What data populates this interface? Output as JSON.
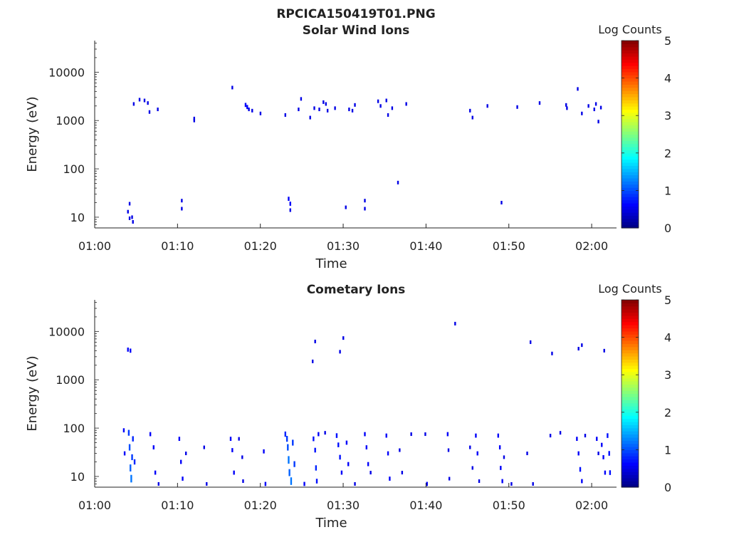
{
  "figure_title": "RPCICA150419T01.PNG",
  "colors": {
    "axis": "#222222",
    "background": "#ffffff",
    "marks": "#00008f"
  },
  "colorbar": {
    "label": "Log Counts",
    "ticks": [
      "5",
      "4",
      "3",
      "2",
      "1",
      "0"
    ],
    "colormap": "jet",
    "range": [
      0,
      5
    ]
  },
  "chart_data": [
    {
      "type": "heatmap",
      "title": "Solar Wind Ions",
      "xlabel": "Time",
      "ylabel": "Energy (eV)",
      "x_ticks": [
        "01:00",
        "01:10",
        "01:20",
        "01:30",
        "01:40",
        "01:50",
        "02:00"
      ],
      "y_ticks": [
        "10",
        "100",
        "1000",
        "10000"
      ],
      "y_scale": "log",
      "xlim_minutes": [
        0,
        63
      ],
      "ylim": [
        6,
        45000
      ],
      "points": [
        [
          4.2,
          19,
          0.5
        ],
        [
          4.0,
          13,
          0.5
        ],
        [
          4.2,
          9.5,
          0.5
        ],
        [
          4.5,
          10,
          0.5
        ],
        [
          4.6,
          8,
          0.5
        ],
        [
          10.5,
          22,
          0.5
        ],
        [
          10.5,
          15,
          0.5
        ],
        [
          23.4,
          24,
          0.6
        ],
        [
          23.6,
          19,
          0.6
        ],
        [
          23.6,
          14,
          0.5
        ],
        [
          30.3,
          16,
          0.5
        ],
        [
          32.6,
          22,
          0.5
        ],
        [
          32.6,
          15,
          0.5
        ],
        [
          36.6,
          52,
          0.5
        ],
        [
          49.1,
          20,
          0.5
        ],
        [
          4.7,
          2200,
          0.5
        ],
        [
          5.4,
          2700,
          0.5
        ],
        [
          6.0,
          2600,
          0.5
        ],
        [
          6.4,
          2300,
          0.5
        ],
        [
          6.6,
          1500,
          0.5
        ],
        [
          7.6,
          1700,
          0.5
        ],
        [
          12.0,
          1100,
          0.5
        ],
        [
          12.0,
          1000,
          0.5
        ],
        [
          16.6,
          4800,
          0.5
        ],
        [
          18.2,
          2100,
          0.6
        ],
        [
          18.4,
          1900,
          0.6
        ],
        [
          18.6,
          1700,
          0.5
        ],
        [
          19.0,
          1600,
          0.5
        ],
        [
          20.0,
          1400,
          0.5
        ],
        [
          23.0,
          1300,
          0.5
        ],
        [
          24.6,
          1700,
          0.5
        ],
        [
          24.9,
          2800,
          0.5
        ],
        [
          26.0,
          1150,
          0.5
        ],
        [
          26.5,
          1800,
          0.5
        ],
        [
          27.1,
          1700,
          0.5
        ],
        [
          27.6,
          2400,
          0.5
        ],
        [
          27.9,
          2200,
          0.5
        ],
        [
          28.1,
          1600,
          0.5
        ],
        [
          29.0,
          1800,
          0.5
        ],
        [
          30.7,
          1700,
          0.5
        ],
        [
          31.1,
          1600,
          0.5
        ],
        [
          31.4,
          2100,
          0.5
        ],
        [
          34.2,
          2500,
          0.5
        ],
        [
          34.5,
          2000,
          0.5
        ],
        [
          35.2,
          2600,
          0.5
        ],
        [
          35.4,
          1300,
          0.5
        ],
        [
          35.9,
          1800,
          0.5
        ],
        [
          37.6,
          2200,
          0.5
        ],
        [
          45.3,
          1600,
          0.5
        ],
        [
          45.6,
          1150,
          0.5
        ],
        [
          47.4,
          2000,
          0.5
        ],
        [
          51.0,
          1900,
          0.5
        ],
        [
          53.7,
          2300,
          0.5
        ],
        [
          56.9,
          2100,
          0.5
        ],
        [
          57.0,
          1800,
          0.5
        ],
        [
          58.3,
          4500,
          0.5
        ],
        [
          58.8,
          1400,
          0.5
        ],
        [
          59.6,
          2000,
          0.5
        ],
        [
          60.3,
          1700,
          0.5
        ],
        [
          60.5,
          2200,
          0.5
        ],
        [
          60.8,
          950,
          0.5
        ],
        [
          61.1,
          1850,
          0.5
        ]
      ]
    },
    {
      "type": "heatmap",
      "title": "Cometary Ions",
      "xlabel": "Time",
      "ylabel": "Energy (eV)",
      "x_ticks": [
        "01:00",
        "01:10",
        "01:20",
        "01:30",
        "01:40",
        "01:50",
        "02:00"
      ],
      "y_ticks": [
        "10",
        "100",
        "1000",
        "10000"
      ],
      "y_scale": "log",
      "xlim_minutes": [
        0,
        63
      ],
      "ylim": [
        6,
        45000
      ],
      "points": [
        [
          3.5,
          90,
          0.6
        ],
        [
          3.6,
          30,
          0.6
        ],
        [
          4.0,
          4200,
          0.6
        ],
        [
          4.3,
          4000,
          0.6
        ],
        [
          4.1,
          80,
          0.9
        ],
        [
          4.2,
          40,
          1.0
        ],
        [
          4.3,
          15,
          1.1
        ],
        [
          4.4,
          9,
          1.2
        ],
        [
          4.5,
          25,
          0.9
        ],
        [
          4.6,
          60,
          0.8
        ],
        [
          4.8,
          20,
          0.8
        ],
        [
          6.7,
          75,
          0.6
        ],
        [
          7.1,
          40,
          0.6
        ],
        [
          7.3,
          12,
          0.6
        ],
        [
          7.7,
          7,
          0.5
        ],
        [
          10.2,
          60,
          0.6
        ],
        [
          10.4,
          20,
          0.6
        ],
        [
          10.6,
          9,
          0.6
        ],
        [
          11.0,
          30,
          0.5
        ],
        [
          13.2,
          40,
          0.5
        ],
        [
          13.5,
          7,
          0.5
        ],
        [
          16.4,
          60,
          0.6
        ],
        [
          16.6,
          35,
          0.6
        ],
        [
          16.8,
          12,
          0.6
        ],
        [
          17.4,
          60,
          0.5
        ],
        [
          17.8,
          25,
          0.5
        ],
        [
          17.9,
          8,
          0.5
        ],
        [
          20.4,
          33,
          0.6
        ],
        [
          20.6,
          7,
          0.6
        ],
        [
          23.0,
          75,
          0.8
        ],
        [
          23.2,
          60,
          0.9
        ],
        [
          23.3,
          40,
          1.0
        ],
        [
          23.4,
          22,
          1.2
        ],
        [
          23.5,
          12,
          1.1
        ],
        [
          23.7,
          8,
          1.2
        ],
        [
          23.9,
          50,
          0.9
        ],
        [
          24.1,
          18,
          0.9
        ],
        [
          25.3,
          7,
          0.6
        ],
        [
          26.3,
          2400,
          0.5
        ],
        [
          26.6,
          6200,
          0.5
        ],
        [
          26.4,
          60,
          0.7
        ],
        [
          26.6,
          35,
          0.7
        ],
        [
          26.7,
          15,
          0.8
        ],
        [
          26.8,
          8,
          0.7
        ],
        [
          27.0,
          75,
          0.6
        ],
        [
          27.8,
          80,
          0.5
        ],
        [
          29.6,
          3800,
          0.5
        ],
        [
          30.0,
          7300,
          0.5
        ],
        [
          29.2,
          70,
          0.7
        ],
        [
          29.4,
          45,
          0.7
        ],
        [
          29.6,
          25,
          0.7
        ],
        [
          29.8,
          12,
          0.6
        ],
        [
          30.4,
          50,
          0.6
        ],
        [
          30.6,
          18,
          0.6
        ],
        [
          31.4,
          7,
          0.5
        ],
        [
          32.6,
          75,
          0.6
        ],
        [
          32.8,
          40,
          0.6
        ],
        [
          33.0,
          18,
          0.6
        ],
        [
          33.3,
          12,
          0.5
        ],
        [
          35.2,
          70,
          0.6
        ],
        [
          35.4,
          30,
          0.6
        ],
        [
          35.6,
          9,
          0.6
        ],
        [
          36.8,
          35,
          0.5
        ],
        [
          37.1,
          12,
          0.5
        ],
        [
          38.2,
          75,
          0.5
        ],
        [
          39.9,
          75,
          0.5
        ],
        [
          40.1,
          7,
          0.6
        ],
        [
          42.6,
          75,
          0.6
        ],
        [
          42.7,
          35,
          0.5
        ],
        [
          42.8,
          9,
          0.5
        ],
        [
          43.5,
          14500,
          0.5
        ],
        [
          45.3,
          40,
          0.5
        ],
        [
          45.6,
          15,
          0.5
        ],
        [
          46.0,
          70,
          0.6
        ],
        [
          46.2,
          30,
          0.6
        ],
        [
          46.4,
          8,
          0.5
        ],
        [
          48.7,
          70,
          0.6
        ],
        [
          48.9,
          40,
          0.6
        ],
        [
          49.0,
          15,
          0.6
        ],
        [
          49.2,
          8,
          0.6
        ],
        [
          49.4,
          25,
          0.5
        ],
        [
          50.3,
          7,
          0.5
        ],
        [
          52.2,
          30,
          0.5
        ],
        [
          52.6,
          6000,
          0.5
        ],
        [
          52.9,
          7,
          0.5
        ],
        [
          55.0,
          70,
          0.5
        ],
        [
          55.2,
          3500,
          0.5
        ],
        [
          56.2,
          80,
          0.5
        ],
        [
          58.4,
          4400,
          0.5
        ],
        [
          58.8,
          5200,
          0.5
        ],
        [
          58.2,
          60,
          0.6
        ],
        [
          58.4,
          30,
          0.6
        ],
        [
          58.6,
          14,
          0.7
        ],
        [
          58.8,
          8,
          0.6
        ],
        [
          59.2,
          70,
          0.5
        ],
        [
          60.6,
          60,
          0.6
        ],
        [
          60.8,
          30,
          0.5
        ],
        [
          61.5,
          4000,
          0.5
        ],
        [
          61.2,
          45,
          0.6
        ],
        [
          61.4,
          25,
          0.6
        ],
        [
          61.6,
          12,
          0.6
        ],
        [
          61.9,
          70,
          0.7
        ],
        [
          62.1,
          30,
          0.7
        ],
        [
          62.2,
          12,
          0.7
        ]
      ]
    }
  ]
}
